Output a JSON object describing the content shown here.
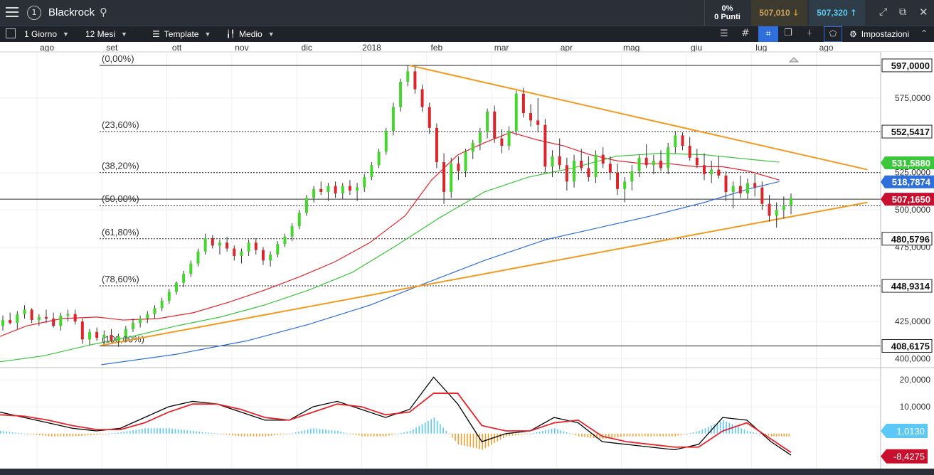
{
  "header": {
    "title": "Blackrock",
    "change_pct": "0%",
    "change_points": "0 Punti",
    "sell_price": "507,010",
    "buy_price": "507,320"
  },
  "toolbar": {
    "interval": "1 Giorno",
    "range": "12 Mesi",
    "template": "Template",
    "average": "Medio",
    "settings": "Impostazioni"
  },
  "colors": {
    "ma_red": "#e8232a",
    "ma_green": "#3cc63c",
    "ma_blue": "#2f6fdb",
    "trend": "#f39a1e",
    "candle_up": "#44d62c",
    "candle_down": "#d9262c"
  },
  "chart_data": [
    {
      "type": "candlestick",
      "title": "",
      "x_tick_labels": [
        "ago",
        "set",
        "ott",
        "nov",
        "dic",
        "2018",
        "feb",
        "mar",
        "apr",
        "mag",
        "giu",
        "lug",
        "ago"
      ],
      "ylim": [
        395,
        607
      ],
      "y_tick_labels": [
        "575,0000",
        "525,0000",
        "500,0000",
        "475,0000",
        "425,0000",
        "400,0000"
      ],
      "grid": true,
      "fibonacci_levels": [
        {
          "label": "(0,00%)",
          "value": 597.0,
          "price_label": "597,0000"
        },
        {
          "label": "(23,60%)",
          "value": 552.5417,
          "price_label": "552,5417"
        },
        {
          "label": "(38,20%)",
          "value": 525.0,
          "price_label": ""
        },
        {
          "label": "(50,00%)",
          "value": 502.8,
          "price_label": ""
        },
        {
          "label": "(61,80%)",
          "value": 480.5796,
          "price_label": "480,5796"
        },
        {
          "label": "(78,60%)",
          "value": 448.9314,
          "price_label": "448,9314"
        },
        {
          "label": "(100,00%)",
          "value": 408.6175,
          "price_label": "408,6175"
        }
      ],
      "price_badges": [
        {
          "label": "531,5880",
          "value": 531.588,
          "color": "#3cc63c"
        },
        {
          "label": "518,7874",
          "value": 518.7874,
          "color": "#2f6fdb"
        },
        {
          "label": "507,1650",
          "value": 507.165,
          "color": "#c8102e"
        }
      ],
      "current_price": 507.165,
      "trendlines": [
        {
          "x": [
            0.115,
            0.985
          ],
          "y": [
            409,
            505
          ]
        },
        {
          "x": [
            0.465,
            0.985
          ],
          "y": [
            597,
            527
          ]
        }
      ],
      "moving_averages": [
        {
          "color": "#e8232a",
          "x": [
            0,
            0.03,
            0.07,
            0.11,
            0.14,
            0.18,
            0.22,
            0.26,
            0.3,
            0.34,
            0.38,
            0.42,
            0.46,
            0.49,
            0.52,
            0.55,
            0.58,
            0.61,
            0.64,
            0.67,
            0.7,
            0.73,
            0.76,
            0.79,
            0.82,
            0.85,
            0.885
          ],
          "y": [
            415,
            422,
            427,
            428,
            426,
            427,
            431,
            438,
            446,
            455,
            465,
            478,
            496,
            520,
            537,
            545,
            552,
            547,
            543,
            537,
            533,
            531,
            531,
            529,
            529,
            526,
            520
          ]
        },
        {
          "color": "#3cc63c",
          "x": [
            0,
            0.05,
            0.1,
            0.15,
            0.2,
            0.25,
            0.3,
            0.35,
            0.4,
            0.45,
            0.5,
            0.55,
            0.6,
            0.65,
            0.7,
            0.75,
            0.8,
            0.85,
            0.885
          ],
          "y": [
            398,
            402,
            409,
            415,
            422,
            428,
            436,
            446,
            458,
            476,
            495,
            512,
            522,
            528,
            536,
            538,
            537,
            534,
            532
          ]
        },
        {
          "color": "#2f6fdb",
          "x": [
            0.115,
            0.2,
            0.28,
            0.35,
            0.42,
            0.48,
            0.55,
            0.62,
            0.68,
            0.74,
            0.8,
            0.85,
            0.885
          ],
          "y": [
            396,
            403,
            412,
            423,
            436,
            450,
            466,
            480,
            488,
            496,
            505,
            514,
            519
          ]
        }
      ],
      "candles": [
        [
          0,
          422,
          429,
          419,
          426
        ],
        [
          1,
          426,
          431,
          423,
          424
        ],
        [
          2,
          424,
          432,
          420,
          430
        ],
        [
          3,
          430,
          436,
          427,
          433
        ],
        [
          4,
          433,
          434,
          424,
          426
        ],
        [
          5,
          426,
          430,
          422,
          428
        ],
        [
          6,
          428,
          433,
          424,
          427
        ],
        [
          7,
          427,
          431,
          421,
          422
        ],
        [
          8,
          422,
          431,
          419,
          429
        ],
        [
          9,
          429,
          433,
          425,
          430
        ],
        [
          10,
          430,
          433,
          423,
          425
        ],
        [
          11,
          425,
          427,
          410,
          413
        ],
        [
          12,
          413,
          420,
          409,
          418
        ],
        [
          13,
          418,
          421,
          412,
          414
        ],
        [
          14,
          414,
          419,
          410,
          416
        ],
        [
          15,
          416,
          420,
          411,
          412
        ],
        [
          16,
          412,
          417,
          408,
          415
        ],
        [
          17,
          415,
          422,
          412,
          420
        ],
        [
          18,
          420,
          427,
          418,
          424
        ],
        [
          19,
          424,
          429,
          421,
          427
        ],
        [
          20,
          427,
          432,
          424,
          430
        ],
        [
          21,
          430,
          436,
          427,
          434
        ],
        [
          22,
          434,
          441,
          432,
          439
        ],
        [
          23,
          439,
          447,
          437,
          445
        ],
        [
          24,
          445,
          452,
          443,
          451
        ],
        [
          25,
          451,
          459,
          448,
          457
        ],
        [
          26,
          457,
          466,
          455,
          464
        ],
        [
          27,
          464,
          474,
          462,
          472
        ],
        [
          28,
          472,
          484,
          470,
          481
        ],
        [
          29,
          481,
          483,
          474,
          476
        ],
        [
          30,
          476,
          480,
          470,
          478
        ],
        [
          31,
          478,
          482,
          472,
          474
        ],
        [
          32,
          474,
          476,
          466,
          469
        ],
        [
          33,
          469,
          474,
          464,
          472
        ],
        [
          34,
          472,
          480,
          469,
          478
        ],
        [
          35,
          478,
          481,
          470,
          473
        ],
        [
          36,
          473,
          475,
          463,
          466
        ],
        [
          37,
          466,
          472,
          462,
          470
        ],
        [
          38,
          470,
          479,
          468,
          477
        ],
        [
          39,
          477,
          484,
          475,
          482
        ],
        [
          40,
          482,
          491,
          479,
          489
        ],
        [
          41,
          489,
          500,
          487,
          498
        ],
        [
          42,
          498,
          510,
          496,
          508
        ],
        [
          43,
          508,
          516,
          505,
          514
        ],
        [
          44,
          514,
          519,
          510,
          512
        ],
        [
          45,
          512,
          518,
          506,
          516
        ],
        [
          46,
          516,
          519,
          508,
          511
        ],
        [
          47,
          511,
          518,
          507,
          516
        ],
        [
          48,
          516,
          520,
          510,
          513
        ],
        [
          49,
          513,
          518,
          506,
          515
        ],
        [
          50,
          515,
          524,
          512,
          522
        ],
        [
          51,
          522,
          532,
          520,
          530
        ],
        [
          52,
          530,
          541,
          528,
          539
        ],
        [
          53,
          539,
          555,
          537,
          553
        ],
        [
          54,
          553,
          572,
          550,
          569
        ],
        [
          55,
          569,
          588,
          566,
          586
        ],
        [
          56,
          586,
          597,
          583,
          593
        ],
        [
          57,
          593,
          596,
          578,
          581
        ],
        [
          58,
          581,
          584,
          566,
          569
        ],
        [
          59,
          569,
          572,
          551,
          555
        ],
        [
          60,
          555,
          558,
          528,
          532
        ],
        [
          61,
          532,
          538,
          504,
          512
        ],
        [
          62,
          512,
          535,
          508,
          531
        ],
        [
          63,
          531,
          536,
          520,
          526
        ],
        [
          64,
          526,
          541,
          522,
          539
        ],
        [
          65,
          539,
          547,
          534,
          545
        ],
        [
          66,
          545,
          555,
          540,
          552
        ],
        [
          67,
          552,
          568,
          548,
          566
        ],
        [
          68,
          566,
          570,
          545,
          548
        ],
        [
          69,
          548,
          554,
          538,
          543
        ],
        [
          70,
          543,
          556,
          540,
          553
        ],
        [
          71,
          553,
          580,
          550,
          578
        ],
        [
          72,
          578,
          582,
          562,
          565
        ],
        [
          73,
          565,
          571,
          556,
          560
        ],
        [
          74,
          560,
          575,
          552,
          557
        ],
        [
          75,
          557,
          561,
          525,
          529
        ],
        [
          76,
          529,
          540,
          522,
          536
        ],
        [
          77,
          536,
          548,
          527,
          530
        ],
        [
          78,
          530,
          535,
          513,
          519
        ],
        [
          79,
          519,
          537,
          515,
          533
        ],
        [
          80,
          533,
          541,
          526,
          528
        ],
        [
          81,
          528,
          536,
          519,
          522
        ],
        [
          82,
          522,
          540,
          518,
          537
        ],
        [
          83,
          537,
          542,
          528,
          531
        ],
        [
          84,
          531,
          536,
          520,
          525
        ],
        [
          85,
          525,
          531,
          510,
          514
        ],
        [
          86,
          514,
          522,
          505,
          519
        ],
        [
          87,
          519,
          530,
          513,
          526
        ],
        [
          88,
          526,
          537,
          522,
          535
        ],
        [
          89,
          535,
          544,
          528,
          530
        ],
        [
          90,
          530,
          537,
          524,
          533
        ],
        [
          91,
          533,
          540,
          526,
          528
        ],
        [
          92,
          528,
          545,
          524,
          542
        ],
        [
          93,
          542,
          553,
          538,
          550
        ],
        [
          94,
          550,
          552,
          540,
          543
        ],
        [
          95,
          543,
          549,
          533,
          535
        ],
        [
          96,
          535,
          541,
          528,
          530
        ],
        [
          97,
          530,
          538,
          520,
          524
        ],
        [
          98,
          524,
          533,
          518,
          527
        ],
        [
          99,
          527,
          536,
          521,
          523
        ],
        [
          100,
          523,
          526,
          506,
          512
        ],
        [
          101,
          512,
          519,
          501,
          516
        ],
        [
          102,
          516,
          523,
          508,
          511
        ],
        [
          103,
          511,
          521,
          507,
          518
        ],
        [
          104,
          518,
          524,
          509,
          515
        ],
        [
          105,
          515,
          519,
          500,
          504
        ],
        [
          106,
          504,
          510,
          492,
          496
        ],
        [
          107,
          496,
          505,
          488,
          500
        ],
        [
          108,
          500,
          509,
          494,
          503
        ],
        [
          109,
          503,
          511,
          497,
          508
        ]
      ],
      "candle_count": 110
    },
    {
      "type": "line",
      "title": "",
      "ylim": [
        -13,
        24
      ],
      "y_tick_labels": [
        "20,0000",
        "10,0000"
      ],
      "price_badges": [
        {
          "label": "1,0130",
          "value": 1.013,
          "color": "#5cc8f5"
        },
        {
          "label": "-8,4275",
          "value": -8.4275,
          "color": "#c8102e"
        }
      ],
      "x": [
        0,
        0.03,
        0.06,
        0.09,
        0.12,
        0.15,
        0.18,
        0.21,
        0.24,
        0.27,
        0.3,
        0.33,
        0.36,
        0.39,
        0.42,
        0.45,
        0.48,
        0.51,
        0.54,
        0.57,
        0.6,
        0.63,
        0.66,
        0.69,
        0.72,
        0.75,
        0.78,
        0.81,
        0.84,
        0.87,
        0.9,
        0.93,
        0.96,
        0.985
      ],
      "series": [
        {
          "color": "#000000",
          "values": [
            8,
            6,
            4,
            2,
            1,
            2,
            6,
            10,
            12,
            11,
            8,
            5,
            5,
            10,
            12,
            9,
            6,
            9,
            21,
            11,
            -3,
            0,
            1,
            6,
            4,
            -3,
            -4,
            -5,
            -6,
            -4,
            6,
            5,
            -3,
            -8
          ]
        },
        {
          "color": "#e8232a",
          "values": [
            7,
            6.5,
            5,
            3,
            1.5,
            1.5,
            4,
            8,
            11,
            11,
            9,
            6,
            5,
            8,
            11,
            10,
            7,
            8,
            15,
            15,
            3,
            1,
            1,
            4,
            5,
            -1,
            -3,
            -4,
            -5,
            -5,
            1,
            4,
            -2,
            -7
          ]
        }
      ],
      "histogram": [
        1,
        0,
        -1,
        -1,
        -0.5,
        0.5,
        2,
        2,
        1,
        0,
        -1,
        -1,
        0,
        2,
        1,
        -1,
        -1,
        1,
        6,
        -4,
        -6,
        -1,
        0,
        2,
        -1,
        -2,
        -1,
        -1,
        -1,
        1,
        5,
        1,
        -1,
        -1
      ]
    }
  ]
}
